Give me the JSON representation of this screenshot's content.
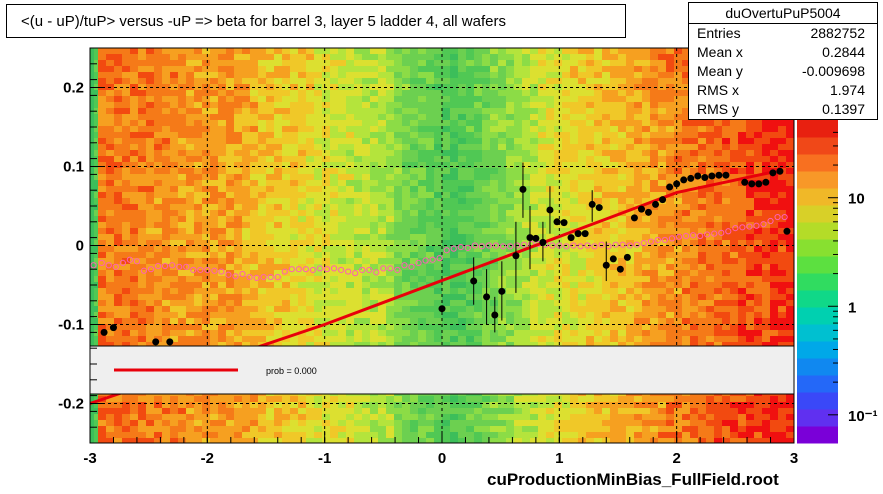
{
  "chart_title": "<(u - uP)/tuP> versus  -uP => beta for barrel 3, layer 5 ladder 4, all wafers",
  "stats": {
    "name": "duOvertuPuP5004",
    "rows": [
      {
        "label": "Entries",
        "value": "2882752"
      },
      {
        "label": "Mean x",
        "value": "0.2844"
      },
      {
        "label": "Mean y",
        "value": "-0.009698"
      },
      {
        "label": "RMS x",
        "value": "1.974"
      },
      {
        "label": "RMS y",
        "value": "0.1397"
      }
    ]
  },
  "legend": {
    "text": "prob = 0.000",
    "line_color": "#e8000b"
  },
  "footer": "cuProductionMinBias_FullField.root",
  "colors": {
    "marker": "#000000",
    "profile": "#ff5fb4",
    "fit": "#e8000b",
    "grid": "#000000"
  },
  "chart_data": {
    "type": "heatmap",
    "xlim": [
      -3,
      3
    ],
    "ylim": [
      -0.25,
      0.25
    ],
    "x_ticks": [
      "-3",
      "-2",
      "-1",
      "0",
      "1",
      "2",
      "3"
    ],
    "x_tick_values": [
      -3,
      -2,
      -1,
      0,
      1,
      2,
      3
    ],
    "y_ticks": [
      "-0.2",
      "-0.1",
      "0",
      "0.1",
      "0.2"
    ],
    "y_tick_values": [
      -0.2,
      -0.1,
      0,
      0.1,
      0.2
    ],
    "grid": true,
    "z_scale": "log",
    "z_ticks": [
      "10",
      "1",
      "10⁻¹"
    ],
    "z_tick_values": [
      10,
      1,
      0.1
    ],
    "black_points": [
      {
        "x": -2.88,
        "y": -0.11
      },
      {
        "x": -2.8,
        "y": -0.104
      },
      {
        "x": -2.44,
        "y": -0.122
      },
      {
        "x": -2.32,
        "y": -0.122
      },
      {
        "x": 0.0,
        "y": -0.08
      },
      {
        "x": 0.27,
        "y": -0.045
      },
      {
        "x": 0.38,
        "y": -0.065
      },
      {
        "x": 0.45,
        "y": -0.088
      },
      {
        "x": 0.51,
        "y": -0.058
      },
      {
        "x": 0.63,
        "y": -0.013
      },
      {
        "x": 0.69,
        "y": 0.071
      },
      {
        "x": 0.75,
        "y": 0.01
      },
      {
        "x": 0.8,
        "y": 0.009
      },
      {
        "x": 0.86,
        "y": 0.004
      },
      {
        "x": 0.92,
        "y": 0.045
      },
      {
        "x": 0.98,
        "y": 0.03
      },
      {
        "x": 1.04,
        "y": 0.029
      },
      {
        "x": 1.1,
        "y": 0.01
      },
      {
        "x": 1.16,
        "y": 0.015
      },
      {
        "x": 1.22,
        "y": 0.015
      },
      {
        "x": 1.28,
        "y": 0.052
      },
      {
        "x": 1.34,
        "y": 0.048
      },
      {
        "x": 1.4,
        "y": -0.025
      },
      {
        "x": 1.46,
        "y": -0.017
      },
      {
        "x": 1.52,
        "y": -0.03
      },
      {
        "x": 1.58,
        "y": -0.015
      },
      {
        "x": 1.64,
        "y": 0.035
      },
      {
        "x": 1.7,
        "y": 0.046
      },
      {
        "x": 1.76,
        "y": 0.042
      },
      {
        "x": 1.82,
        "y": 0.052
      },
      {
        "x": 1.88,
        "y": 0.058
      },
      {
        "x": 1.94,
        "y": 0.074
      },
      {
        "x": 2.0,
        "y": 0.078
      },
      {
        "x": 2.06,
        "y": 0.083
      },
      {
        "x": 2.12,
        "y": 0.085
      },
      {
        "x": 2.18,
        "y": 0.088
      },
      {
        "x": 2.24,
        "y": 0.086
      },
      {
        "x": 2.3,
        "y": 0.088
      },
      {
        "x": 2.36,
        "y": 0.089
      },
      {
        "x": 2.42,
        "y": 0.089
      },
      {
        "x": 2.58,
        "y": 0.08
      },
      {
        "x": 2.64,
        "y": 0.078
      },
      {
        "x": 2.7,
        "y": 0.078
      },
      {
        "x": 2.76,
        "y": 0.08
      },
      {
        "x": 2.82,
        "y": 0.092
      },
      {
        "x": 2.88,
        "y": 0.094
      },
      {
        "x": 2.94,
        "y": 0.018
      }
    ],
    "black_error_bars": [
      {
        "x": 0.27,
        "lo": -0.075,
        "hi": -0.015
      },
      {
        "x": 0.38,
        "lo": -0.1,
        "hi": -0.03
      },
      {
        "x": 0.45,
        "lo": -0.11,
        "hi": -0.065
      },
      {
        "x": 0.51,
        "lo": -0.095,
        "hi": -0.02
      },
      {
        "x": 0.63,
        "lo": -0.06,
        "hi": 0.03
      },
      {
        "x": 0.69,
        "lo": 0.035,
        "hi": 0.105
      },
      {
        "x": 0.75,
        "lo": -0.03,
        "hi": 0.05
      },
      {
        "x": 0.86,
        "lo": -0.02,
        "hi": 0.03
      },
      {
        "x": 0.92,
        "lo": 0.015,
        "hi": 0.075
      },
      {
        "x": 1.28,
        "lo": 0.03,
        "hi": 0.07
      },
      {
        "x": 1.4,
        "lo": -0.045,
        "hi": 0.005
      }
    ],
    "profile": {
      "x": [
        -2.97,
        -2.9,
        -2.84,
        -2.78,
        -2.72,
        -2.66,
        -2.6,
        -2.54,
        -2.48,
        -2.42,
        -2.36,
        -2.3,
        -2.24,
        -2.18,
        -2.12,
        -2.06,
        -2.0,
        -1.94,
        -1.88,
        -1.82,
        -1.76,
        -1.7,
        -1.64,
        -1.58,
        -1.52,
        -1.46,
        -1.4,
        -1.34,
        -1.28,
        -1.22,
        -1.16,
        -1.1,
        -1.04,
        -0.98,
        -0.92,
        -0.86,
        -0.8,
        -0.74,
        -0.68,
        -0.62,
        -0.56,
        -0.5,
        -0.44,
        -0.38,
        -0.32,
        -0.26,
        -0.2,
        -0.14,
        -0.08,
        -0.02,
        0.04,
        0.1,
        0.16,
        0.22,
        0.28,
        0.34,
        0.4,
        0.46,
        0.52,
        0.58,
        0.64,
        0.7,
        0.76,
        0.82,
        0.88,
        0.94,
        1.0,
        1.06,
        1.12,
        1.18,
        1.24,
        1.3,
        1.36,
        1.42,
        1.48,
        1.54,
        1.6,
        1.66,
        1.72,
        1.78,
        1.84,
        1.9,
        1.96,
        2.02,
        2.08,
        2.14,
        2.2,
        2.26,
        2.32,
        2.38,
        2.44,
        2.5,
        2.56,
        2.62,
        2.68,
        2.74,
        2.8,
        2.86,
        2.92
      ],
      "y": [
        -0.025,
        -0.022,
        -0.025,
        -0.027,
        -0.022,
        -0.018,
        -0.02,
        -0.032,
        -0.03,
        -0.026,
        -0.026,
        -0.025,
        -0.027,
        -0.027,
        -0.031,
        -0.031,
        -0.031,
        -0.032,
        -0.033,
        -0.037,
        -0.039,
        -0.036,
        -0.04,
        -0.041,
        -0.04,
        -0.04,
        -0.04,
        -0.033,
        -0.03,
        -0.03,
        -0.03,
        -0.031,
        -0.029,
        -0.03,
        -0.029,
        -0.031,
        -0.033,
        -0.035,
        -0.031,
        -0.031,
        -0.034,
        -0.029,
        -0.029,
        -0.031,
        -0.025,
        -0.027,
        -0.022,
        -0.019,
        -0.018,
        -0.016,
        -0.006,
        -0.004,
        -0.002,
        -0.003,
        -0.0,
        -0.001,
        -0.0,
        -0.0,
        -0.001,
        -0.001,
        0.0,
        0.001,
        0.002,
        0.002,
        0.001,
        0.0,
        0.0,
        -0.001,
        0.0,
        -0.001,
        0.0,
        -0.001,
        0.001,
        -0.001,
        0.001,
        0.001,
        0.0,
        0.001,
        0.003,
        0.005,
        0.007,
        0.007,
        0.009,
        0.011,
        0.012,
        0.013,
        0.012,
        0.014,
        0.015,
        0.016,
        0.018,
        0.022,
        0.023,
        0.024,
        0.025,
        0.027,
        0.031,
        0.036,
        0.036
      ]
    },
    "fit_line": {
      "x": [
        -3.0,
        -1.0,
        2.0,
        2.85
      ],
      "y": [
        -0.2,
        -0.1,
        0.067,
        0.094
      ]
    }
  }
}
